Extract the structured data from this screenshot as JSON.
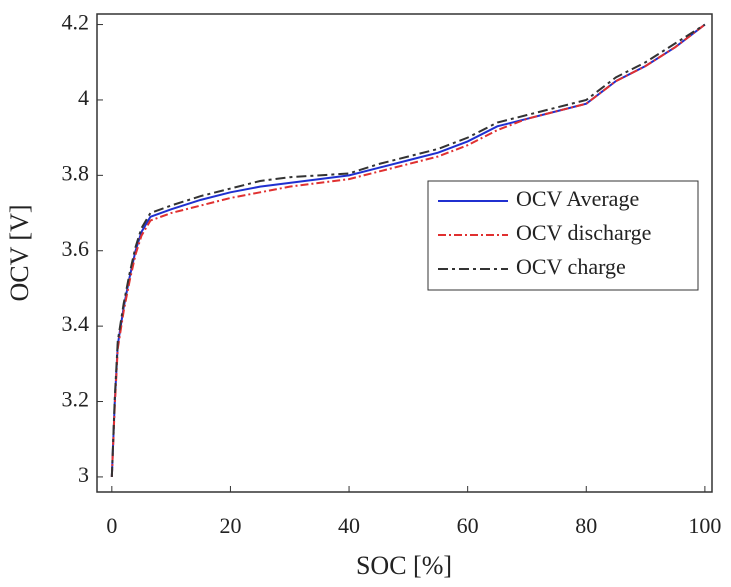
{
  "chart_data": {
    "type": "line",
    "xlabel": "SOC [%]",
    "ylabel": "OCV [V]",
    "x": [
      0,
      0.5,
      1,
      2,
      3,
      4,
      5,
      6.5,
      10,
      15,
      20,
      25,
      30,
      35,
      40,
      45,
      50,
      55,
      60,
      65,
      70,
      75,
      80,
      85,
      90,
      95,
      100
    ],
    "series": [
      {
        "name": "OCV Average",
        "color": "#2030d0",
        "dash": "",
        "values": [
          3.0,
          3.2,
          3.35,
          3.45,
          3.53,
          3.6,
          3.65,
          3.69,
          3.71,
          3.735,
          3.755,
          3.77,
          3.78,
          3.79,
          3.8,
          3.82,
          3.84,
          3.86,
          3.89,
          3.93,
          3.95,
          3.97,
          3.99,
          4.05,
          4.09,
          4.14,
          4.2
        ]
      },
      {
        "name": "OCV discharge",
        "color": "#e03030",
        "dash": "8 3 2 3",
        "values": [
          3.0,
          3.19,
          3.34,
          3.44,
          3.52,
          3.59,
          3.64,
          3.68,
          3.7,
          3.72,
          3.74,
          3.755,
          3.77,
          3.78,
          3.79,
          3.81,
          3.83,
          3.85,
          3.88,
          3.92,
          3.95,
          3.97,
          3.99,
          4.05,
          4.09,
          4.14,
          4.2
        ]
      },
      {
        "name": "OCV charge",
        "color": "#333333",
        "dash": "10 4 3 4",
        "values": [
          3.0,
          3.21,
          3.36,
          3.46,
          3.54,
          3.61,
          3.66,
          3.7,
          3.72,
          3.745,
          3.765,
          3.785,
          3.795,
          3.8,
          3.805,
          3.83,
          3.85,
          3.87,
          3.9,
          3.94,
          3.96,
          3.98,
          4.0,
          4.06,
          4.1,
          4.15,
          4.2
        ]
      }
    ],
    "xlim": [
      -2.5,
      101.2
    ],
    "ylim": [
      2.96,
      4.228
    ],
    "xticks": [
      0,
      20,
      40,
      60,
      80,
      100
    ],
    "yticks": [
      3,
      {
        "value": 3.2,
        "label": "3.2"
      },
      {
        "value": 3.4,
        "label": "3.4"
      },
      {
        "value": 3.6,
        "label": "3.6"
      },
      {
        "value": 3.8,
        "label": "3.8"
      },
      4,
      {
        "value": 4.2,
        "label": "4.2"
      }
    ],
    "legend": "upper right"
  }
}
